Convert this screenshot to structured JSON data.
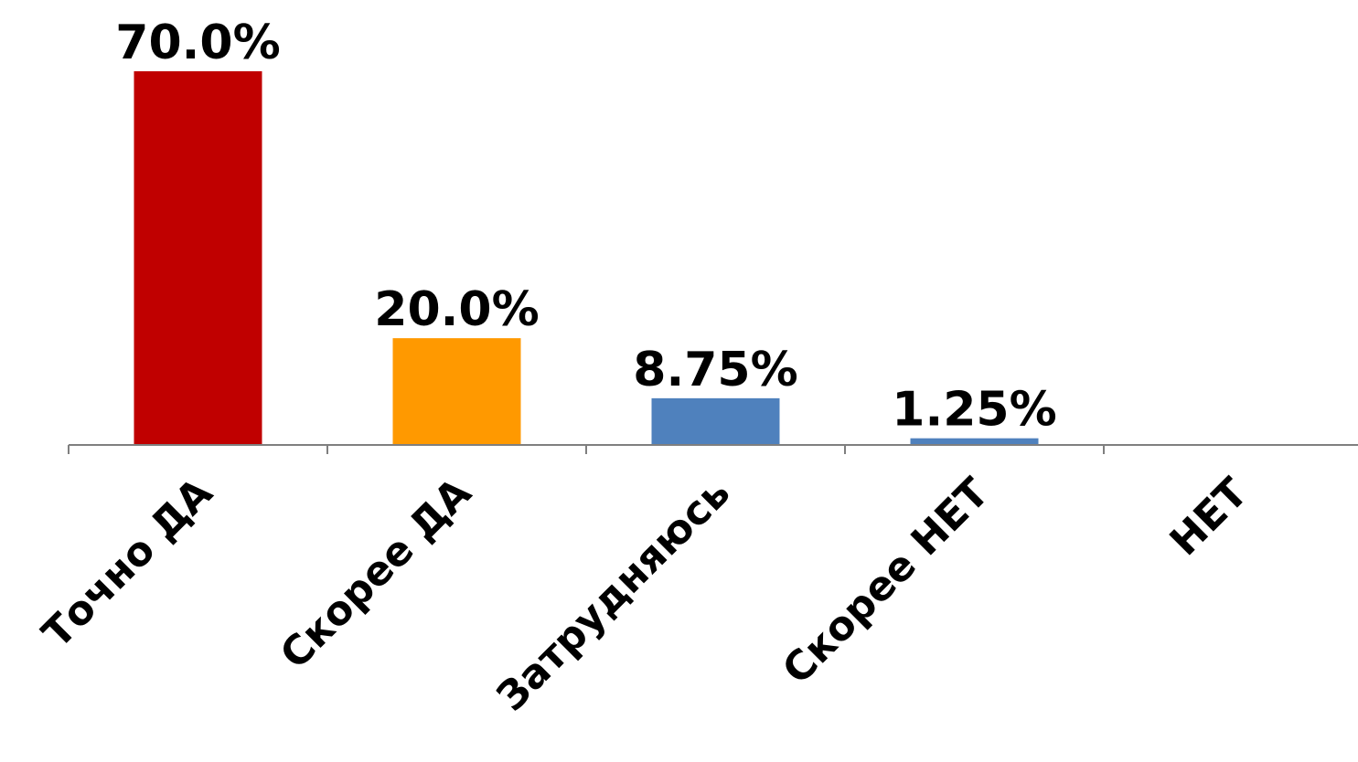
{
  "chart_data": {
    "type": "bar",
    "categories": [
      "Точно ДА",
      "Скорее ДА",
      "Затрудняюсь",
      "Скорее НЕТ",
      "НЕТ"
    ],
    "values": [
      70.0,
      20.0,
      8.75,
      1.25,
      0
    ],
    "data_labels": [
      "70.0%",
      "20.0%",
      "8.75%",
      "1.25%",
      ""
    ],
    "colors": [
      "#c00000",
      "#ff9900",
      "#4f81bd",
      "#4f81bd",
      "#4f81bd"
    ],
    "ylim": [
      0,
      70
    ],
    "unit": "%",
    "grid": false,
    "legend": "none",
    "title": "",
    "xlabel": "",
    "ylabel": ""
  }
}
